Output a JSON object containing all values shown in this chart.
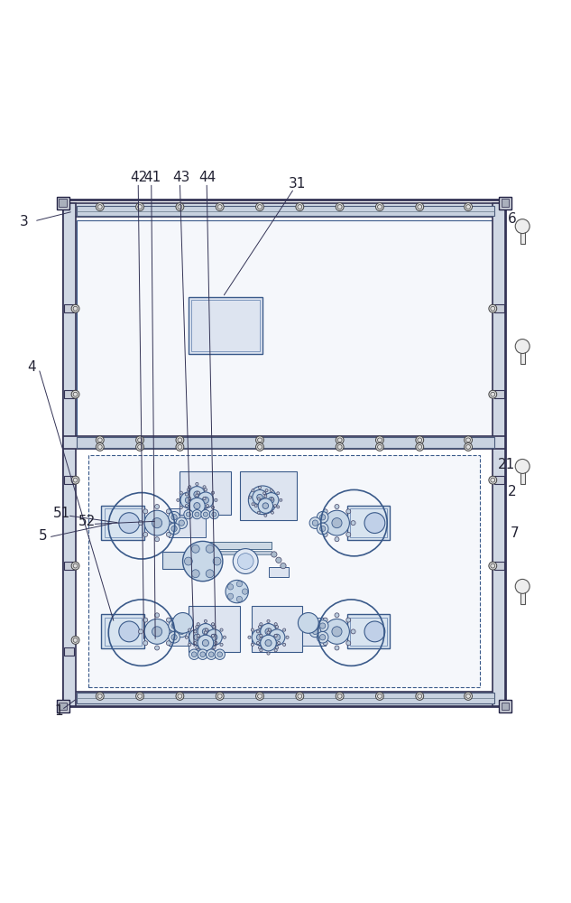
{
  "bg_color": "#ffffff",
  "label_fontsize": 11,
  "frame_ec": "#333355",
  "frame_fc": "#d0d8e4",
  "inner_ec": "#3a5a8a",
  "inner_fc": "#f5f7fb",
  "motor_fc": "#d8e4f0",
  "gear_fc": "#c8d8e8",
  "gear_ec": "#3a5a8a",
  "bolt_fc": "#dddddd",
  "bolt_ec": "#444444",
  "knob_fc": "#eeeeee",
  "knob_ec": "#555555",
  "label_color": "#222233",
  "ann_color": "#333355"
}
